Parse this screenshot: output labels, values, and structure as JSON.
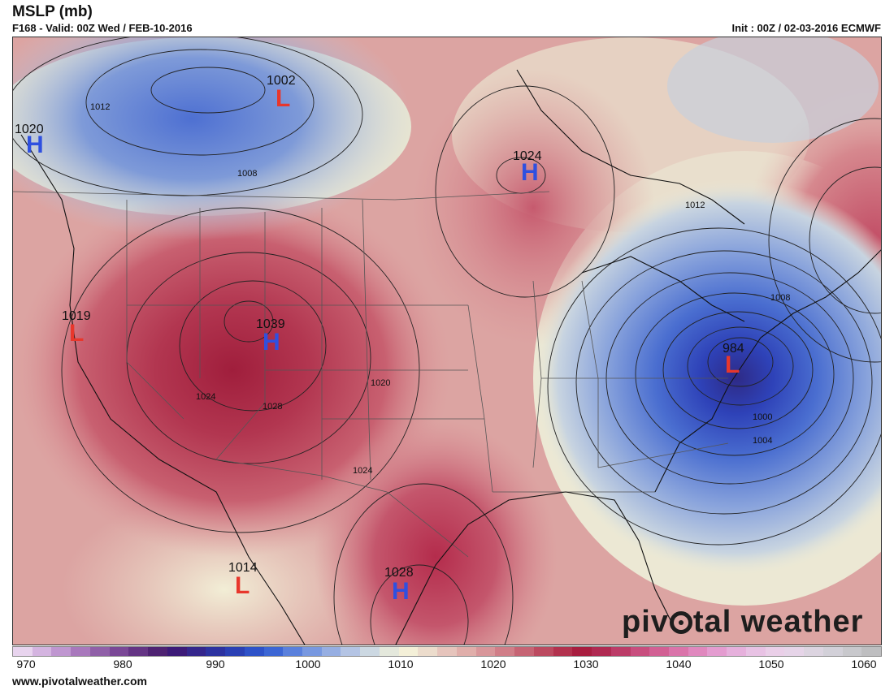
{
  "header": {
    "title": "MSLP (mb)",
    "valid": "F168 - Valid: 00Z Wed / FEB-10-2016",
    "init": "Init : 00Z / 02-03-2016 ECMWF"
  },
  "footer": {
    "url": "www.pivotalweather.com"
  },
  "logo": {
    "text_before": "piv",
    "text_after": "tal weather"
  },
  "colorbar": {
    "tick_labels": [
      "970",
      "980",
      "990",
      "1000",
      "1010",
      "1020",
      "1030",
      "1040",
      "1050",
      "1060"
    ],
    "colors": [
      "#e8d4ee",
      "#d4b4e0",
      "#bf96d0",
      "#a878bc",
      "#9060a8",
      "#7a4896",
      "#643484",
      "#4e2272",
      "#3c1a78",
      "#34268c",
      "#2c32a0",
      "#2a40b4",
      "#2e52c8",
      "#3c66d4",
      "#5a80dc",
      "#7898e0",
      "#96aee2",
      "#b4c4e4",
      "#ccd8e2",
      "#e4e8dc",
      "#f4f0d8",
      "#ecdccc",
      "#e6c4bc",
      "#e0aeaa",
      "#d8969a",
      "#d07e88",
      "#c66474",
      "#bc4a60",
      "#b2324e",
      "#a81e40",
      "#b02a52",
      "#bc3c68",
      "#c84e7e",
      "#d26094",
      "#da74aa",
      "#e088be",
      "#e49cd0",
      "#e6b0dc",
      "#e8c2e4",
      "#eacfe8",
      "#e6d4e8",
      "#dcd4e0",
      "#d2d0d8",
      "#c8c8cc",
      "#bebec0"
    ]
  },
  "systems": [
    {
      "type": "L",
      "value": "1002",
      "color": "#e8372c"
    },
    {
      "type": "H",
      "value": "1020",
      "color": "#2f50e0"
    },
    {
      "type": "H",
      "value": "1024",
      "color": "#2f50e0"
    },
    {
      "type": "L",
      "value": "1019",
      "color": "#e8372c"
    },
    {
      "type": "H",
      "value": "1039",
      "color": "#2f50e0"
    },
    {
      "type": "L",
      "value": "984",
      "color": "#e8372c"
    },
    {
      "type": "L",
      "value": "1014",
      "color": "#e8372c"
    },
    {
      "type": "H",
      "value": "1028",
      "color": "#2f50e0"
    }
  ],
  "isobar_labels": [
    "1012",
    "1008",
    "1012",
    "1008",
    "1020",
    "1024",
    "1028",
    "1024",
    "1000",
    "1004"
  ]
}
